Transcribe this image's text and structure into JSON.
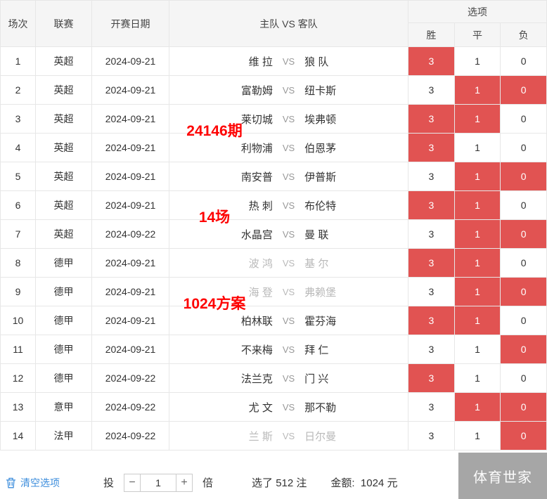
{
  "colors": {
    "selected_bg": "#e15352",
    "annotation_red": "#fe0202",
    "clear_blue": "#3c8ddc",
    "watermark_bg": "#a6a6a6"
  },
  "table": {
    "headers": {
      "match_no": "场次",
      "league": "联赛",
      "date": "开赛日期",
      "teams": "主队 VS 客队",
      "options": "选项",
      "win": "胜",
      "draw": "平",
      "lose": "负"
    },
    "vs_label": "VS",
    "rows": [
      {
        "no": "1",
        "league": "英超",
        "date": "2024-09-21",
        "home": "维 拉",
        "away": "狼 队",
        "odds": {
          "win": "3",
          "draw": "1",
          "lose": "0"
        },
        "selected": {
          "win": true,
          "draw": false,
          "lose": false
        },
        "dimmed": false
      },
      {
        "no": "2",
        "league": "英超",
        "date": "2024-09-21",
        "home": "富勒姆",
        "away": "纽卡斯",
        "odds": {
          "win": "3",
          "draw": "1",
          "lose": "0"
        },
        "selected": {
          "win": false,
          "draw": true,
          "lose": true
        },
        "dimmed": false
      },
      {
        "no": "3",
        "league": "英超",
        "date": "2024-09-21",
        "home": "莱切城",
        "away": "埃弗顿",
        "odds": {
          "win": "3",
          "draw": "1",
          "lose": "0"
        },
        "selected": {
          "win": true,
          "draw": true,
          "lose": false
        },
        "dimmed": false
      },
      {
        "no": "4",
        "league": "英超",
        "date": "2024-09-21",
        "home": "利物浦",
        "away": "伯恩茅",
        "odds": {
          "win": "3",
          "draw": "1",
          "lose": "0"
        },
        "selected": {
          "win": true,
          "draw": false,
          "lose": false
        },
        "dimmed": false
      },
      {
        "no": "5",
        "league": "英超",
        "date": "2024-09-21",
        "home": "南安普",
        "away": "伊普斯",
        "odds": {
          "win": "3",
          "draw": "1",
          "lose": "0"
        },
        "selected": {
          "win": false,
          "draw": true,
          "lose": true
        },
        "dimmed": false
      },
      {
        "no": "6",
        "league": "英超",
        "date": "2024-09-21",
        "home": "热 刺",
        "away": "布伦特",
        "odds": {
          "win": "3",
          "draw": "1",
          "lose": "0"
        },
        "selected": {
          "win": true,
          "draw": true,
          "lose": false
        },
        "dimmed": false
      },
      {
        "no": "7",
        "league": "英超",
        "date": "2024-09-22",
        "home": "水晶宫",
        "away": "曼 联",
        "odds": {
          "win": "3",
          "draw": "1",
          "lose": "0"
        },
        "selected": {
          "win": false,
          "draw": true,
          "lose": true
        },
        "dimmed": false
      },
      {
        "no": "8",
        "league": "德甲",
        "date": "2024-09-21",
        "home": "波 鸿",
        "away": "基 尔",
        "odds": {
          "win": "3",
          "draw": "1",
          "lose": "0"
        },
        "selected": {
          "win": true,
          "draw": true,
          "lose": false
        },
        "dimmed": true
      },
      {
        "no": "9",
        "league": "德甲",
        "date": "2024-09-21",
        "home": "海 登",
        "away": "弗赖堡",
        "odds": {
          "win": "3",
          "draw": "1",
          "lose": "0"
        },
        "selected": {
          "win": false,
          "draw": true,
          "lose": true
        },
        "dimmed": true
      },
      {
        "no": "10",
        "league": "德甲",
        "date": "2024-09-21",
        "home": "柏林联",
        "away": "霍芬海",
        "odds": {
          "win": "3",
          "draw": "1",
          "lose": "0"
        },
        "selected": {
          "win": true,
          "draw": true,
          "lose": false
        },
        "dimmed": false
      },
      {
        "no": "11",
        "league": "德甲",
        "date": "2024-09-21",
        "home": "不来梅",
        "away": "拜 仁",
        "odds": {
          "win": "3",
          "draw": "1",
          "lose": "0"
        },
        "selected": {
          "win": false,
          "draw": false,
          "lose": true
        },
        "dimmed": false
      },
      {
        "no": "12",
        "league": "德甲",
        "date": "2024-09-22",
        "home": "法兰克",
        "away": "门 兴",
        "odds": {
          "win": "3",
          "draw": "1",
          "lose": "0"
        },
        "selected": {
          "win": true,
          "draw": false,
          "lose": false
        },
        "dimmed": false
      },
      {
        "no": "13",
        "league": "意甲",
        "date": "2024-09-22",
        "home": "尤 文",
        "away": "那不勒",
        "odds": {
          "win": "3",
          "draw": "1",
          "lose": "0"
        },
        "selected": {
          "win": false,
          "draw": true,
          "lose": true
        },
        "dimmed": false
      },
      {
        "no": "14",
        "league": "法甲",
        "date": "2024-09-22",
        "home": "兰 斯",
        "away": "日尔曼",
        "odds": {
          "win": "3",
          "draw": "1",
          "lose": "0"
        },
        "selected": {
          "win": false,
          "draw": false,
          "lose": true
        },
        "dimmed": true
      }
    ]
  },
  "annotations": [
    {
      "text": "24146期",
      "row": 3
    },
    {
      "text": "14场",
      "row": 6
    },
    {
      "text": "1024方案",
      "row": 9
    }
  ],
  "footer": {
    "clear_label": "清空选项",
    "bet_label": "投",
    "minus": "−",
    "multiplier": "1",
    "plus": "+",
    "times_label": "倍",
    "selected_text": "选了 512 注",
    "amount_text": "金额:  1024 元",
    "watermark": "体育世家"
  }
}
